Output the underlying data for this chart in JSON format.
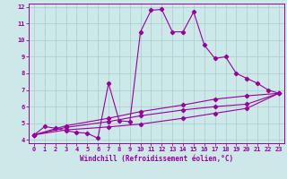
{
  "xlabel": "Windchill (Refroidissement éolien,°C)",
  "bg_color": "#cce8e8",
  "grid_color": "#aacccc",
  "line_color": "#990099",
  "xlim": [
    -0.5,
    23.5
  ],
  "ylim": [
    3.8,
    12.2
  ],
  "xticks": [
    0,
    1,
    2,
    3,
    4,
    5,
    6,
    7,
    8,
    9,
    10,
    11,
    12,
    13,
    14,
    15,
    16,
    17,
    18,
    19,
    20,
    21,
    22,
    23
  ],
  "yticks": [
    4,
    5,
    6,
    7,
    8,
    9,
    10,
    11,
    12
  ],
  "series1_x": [
    0,
    1,
    2,
    3,
    4,
    5,
    6,
    7,
    8,
    9,
    10,
    11,
    12,
    13,
    14,
    15,
    16,
    17,
    18,
    19,
    20,
    21,
    22,
    23
  ],
  "series1_y": [
    4.3,
    4.8,
    4.7,
    4.55,
    4.45,
    4.4,
    4.1,
    7.4,
    5.15,
    5.1,
    10.5,
    11.8,
    11.85,
    10.5,
    10.5,
    11.7,
    9.7,
    8.9,
    9.0,
    8.0,
    7.7,
    7.4,
    7.0,
    6.8
  ],
  "series2_x": [
    0,
    3,
    7,
    10,
    14,
    17,
    20,
    23
  ],
  "series2_y": [
    4.3,
    4.85,
    5.3,
    5.7,
    6.1,
    6.45,
    6.65,
    6.8
  ],
  "series3_x": [
    0,
    3,
    7,
    10,
    14,
    17,
    20,
    23
  ],
  "series3_y": [
    4.3,
    4.75,
    5.1,
    5.45,
    5.8,
    6.0,
    6.15,
    6.8
  ],
  "series4_x": [
    0,
    3,
    7,
    10,
    14,
    17,
    20,
    23
  ],
  "series4_y": [
    4.3,
    4.6,
    4.78,
    4.95,
    5.3,
    5.6,
    5.9,
    6.8
  ]
}
